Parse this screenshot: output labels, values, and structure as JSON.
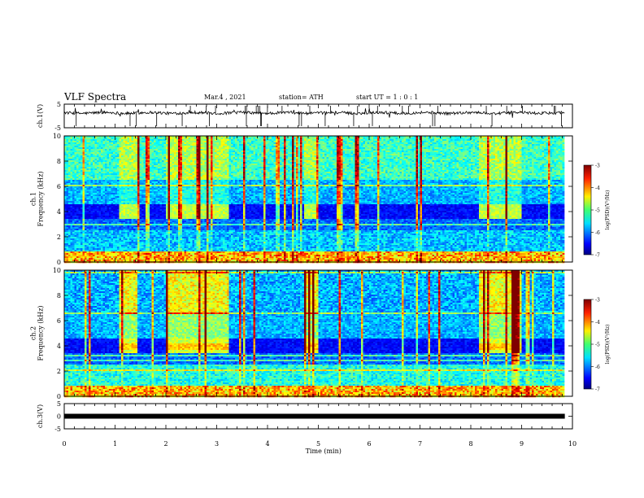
{
  "header": {
    "title": "VLF Spectra",
    "date": "Mar.4  , 2021",
    "station": "station= ATH",
    "start": "start  UT =   1 : 0  : 1"
  },
  "chart_data": [
    {
      "type": "line",
      "name": "ch1-voltage",
      "ylabel": "ch.1(V)",
      "ylim": [
        -5,
        5
      ],
      "yticks": [
        5,
        -5
      ],
      "xlim": [
        0,
        10
      ],
      "baseline": 1.3,
      "data_end_min": 9.85
    },
    {
      "type": "heatmap",
      "name": "ch1-spectrogram",
      "ylabel": "ch.1\nFrequency  (kHz)",
      "ylim": [
        0,
        10
      ],
      "yticks": [
        0,
        2,
        4,
        6,
        8,
        10
      ],
      "xlim": [
        0,
        10
      ],
      "data_end_min": 9.85,
      "active_intervals_min": [
        [
          1.1,
          1.45
        ],
        [
          2.0,
          3.25
        ],
        [
          4.7,
          5.0
        ],
        [
          8.15,
          9.0
        ]
      ],
      "emission_band_khz": [
        3.5,
        4.5
      ],
      "colorbar": {
        "label": "log(PSD)(V²/Hz)",
        "range": [
          -7,
          -3
        ],
        "ticks": [
          -3,
          -4,
          -5,
          -6,
          -7
        ]
      }
    },
    {
      "type": "heatmap",
      "name": "ch2-spectrogram",
      "ylabel": "ch.2\nFrequency  (kHz)",
      "ylim": [
        0,
        10
      ],
      "yticks": [
        0,
        2,
        4,
        6,
        8,
        10
      ],
      "xlim": [
        0,
        10
      ],
      "data_end_min": 9.85,
      "active_intervals_min": [
        [
          1.1,
          1.45
        ],
        [
          2.0,
          3.25
        ],
        [
          4.7,
          5.0
        ],
        [
          8.15,
          9.0
        ]
      ],
      "emission_band_khz": [
        3.5,
        4.5
      ],
      "colorbar": {
        "label": "log(PSD)(V²/Hz)",
        "range": [
          -7,
          -3
        ],
        "ticks": [
          -3,
          -4,
          -5,
          -6,
          -7
        ]
      }
    },
    {
      "type": "line",
      "name": "ch3-voltage",
      "ylabel": "ch.3(V)",
      "ylim": [
        -5,
        5
      ],
      "yticks": [
        5,
        0,
        -5
      ],
      "xlim": [
        0,
        10
      ],
      "baseline": 0,
      "data_end_min": 9.85
    }
  ],
  "xaxis": {
    "label": "Time  (min)",
    "range": [
      0,
      10
    ],
    "ticks": [
      0,
      1,
      2,
      3,
      4,
      5,
      6,
      7,
      8,
      9,
      10
    ]
  }
}
